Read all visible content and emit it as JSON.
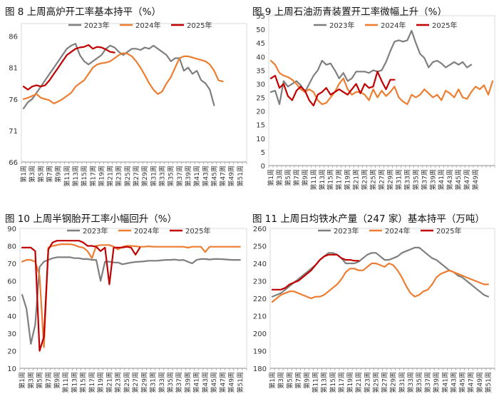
{
  "colors": {
    "s2023": "#7f7f7f",
    "s2024": "#ed7d31",
    "s2025": "#c00000"
  },
  "chart_data": [
    {
      "id": "c8",
      "type": "line",
      "title": "图 8  上周高炉开工率基本持平（%）",
      "xlabel": "",
      "ylabel": "",
      "ylim": [
        66,
        88
      ],
      "yticks": [
        66,
        71,
        76,
        81,
        86
      ],
      "xtick_labels": [
        "第1周",
        "第3周",
        "第5周",
        "第7周",
        "第9周",
        "第11周",
        "第13周",
        "第15周",
        "第17周",
        "第19周",
        "第21周",
        "第23周",
        "第25周",
        "第27周",
        "第29周",
        "第31周",
        "第33周",
        "第35周",
        "第37周",
        "第39周",
        "第41周",
        "第43周",
        "第45周",
        "第47周",
        "第49周",
        "第51周"
      ],
      "legend_position": "top-center",
      "series": [
        {
          "name": "2023年",
          "color_key": "s2023",
          "values": [
            74.5,
            75.5,
            76,
            77,
            78,
            79,
            80,
            81,
            82,
            83,
            84,
            84.5,
            84.8,
            83,
            82,
            81.5,
            82,
            82.5,
            83,
            84,
            84.5,
            84.2,
            83.5,
            83,
            83.5,
            84,
            84,
            83.8,
            84.2,
            84,
            84.5,
            84,
            83.5,
            83,
            82,
            82.5,
            82.5,
            80.5,
            81,
            80,
            80.5,
            79,
            78.5,
            77.5,
            75
          ]
        },
        {
          "name": "2024年",
          "color_key": "s2024",
          "values": [
            76,
            76.2,
            76.5,
            76.8,
            76.2,
            76,
            75.8,
            75.3,
            75.6,
            76,
            76.5,
            77,
            78,
            78.5,
            79,
            80,
            81,
            81.5,
            81.7,
            81.8,
            82,
            82.5,
            83,
            83.3,
            83.2,
            82.8,
            82,
            81,
            79.8,
            78.5,
            77.5,
            76.8,
            77.2,
            78.5,
            79.5,
            81,
            82.5,
            82.8,
            82.8,
            82.6,
            82.4,
            82.2,
            82,
            81.5,
            80.5,
            79,
            78.8
          ]
        },
        {
          "name": "2025年",
          "color_key": "s2025",
          "values": [
            78,
            77.5,
            78,
            78.2,
            78,
            78.2,
            79,
            80,
            81,
            82,
            83,
            83.5,
            84,
            84.2,
            84.3,
            84.6,
            84,
            84.3,
            84.2,
            83.9,
            83.5,
            83.4
          ]
        }
      ]
    },
    {
      "id": "c9",
      "type": "line",
      "title": "图 9  上周石油沥青装置开工率微幅上升（%）",
      "xlabel": "",
      "ylabel": "",
      "ylim": [
        0,
        55
      ],
      "yticks": [
        0,
        5,
        10,
        15,
        20,
        25,
        30,
        35,
        40,
        45,
        50,
        55
      ],
      "xtick_labels": [
        "第1周",
        "第3周",
        "第5周",
        "第7周",
        "第9周",
        "第11周",
        "第13周",
        "第15周",
        "第17周",
        "第19周",
        "第21周",
        "第23周",
        "第25周",
        "第27周",
        "第29周",
        "第31周",
        "第33周",
        "第35周",
        "第37周",
        "第39周",
        "第41周",
        "第43周",
        "第45周",
        "第47周",
        "第49周"
      ],
      "legend_position": "top-center",
      "series": [
        {
          "name": "2023年",
          "color_key": "s2023",
          "values": [
            27,
            27.5,
            22.5,
            31,
            29,
            30,
            31,
            29.5,
            27,
            30,
            33,
            35,
            38.5,
            37,
            37.5,
            35,
            32,
            34,
            31,
            32,
            34.5,
            34.5,
            34.5,
            34,
            35,
            34.5,
            35,
            38,
            42,
            45.5,
            46,
            45.5,
            46,
            49.5,
            45,
            41,
            39.5,
            36,
            38,
            38.5,
            37.5,
            36,
            37,
            38,
            37,
            38,
            36,
            37
          ]
        },
        {
          "name": "2024年",
          "color_key": "s2024",
          "values": [
            38.5,
            37,
            34,
            33,
            32.5,
            31.5,
            30,
            28,
            27,
            28,
            27,
            24,
            22.5,
            23,
            25,
            27,
            30,
            32,
            28,
            26,
            27,
            27,
            26,
            24,
            28,
            25,
            27.5,
            25.5,
            27,
            29,
            25,
            23.5,
            22.5,
            26,
            25,
            26,
            28,
            26.5,
            25,
            26,
            24,
            27.5,
            26.5,
            25,
            28,
            25,
            24.5,
            27,
            29,
            28,
            29.5,
            26,
            31
          ]
        },
        {
          "name": "2025年",
          "color_key": "s2025",
          "values": [
            32,
            33,
            28.5,
            30,
            25.5,
            24,
            27.5,
            29,
            27.5,
            24,
            22,
            26,
            27,
            28.5,
            26,
            27,
            28,
            27,
            26,
            28,
            30,
            26.5,
            30,
            28.5,
            29,
            34.5,
            31,
            28,
            31.5,
            31.5
          ]
        }
      ]
    },
    {
      "id": "c10",
      "type": "line",
      "title": "图 10  上周半钢胎开工率小幅回升（%）",
      "xlabel": "",
      "ylabel": "",
      "ylim": [
        10,
        90
      ],
      "yticks": [
        10,
        20,
        30,
        40,
        50,
        60,
        70,
        80,
        90
      ],
      "xtick_labels": [
        "第1周",
        "第3周",
        "第5周",
        "第7周",
        "第9周",
        "第11周",
        "第13周",
        "第15周",
        "第17周",
        "第19周",
        "第21周",
        "第23周",
        "第25周",
        "第27周",
        "第29周",
        "第31周",
        "第33周",
        "第35周",
        "第37周",
        "第39周",
        "第41周",
        "第43周",
        "第45周",
        "第47周",
        "第49周",
        "第51周"
      ],
      "legend_position": "top-center",
      "series": [
        {
          "name": "2023年",
          "color_key": "s2023",
          "values": [
            52,
            44,
            24,
            35,
            68,
            71,
            72,
            73,
            73.5,
            73.5,
            73.5,
            73.5,
            73,
            73,
            72.5,
            72.5,
            72,
            72,
            60,
            71,
            71,
            70.5,
            70.5,
            69.5,
            70,
            70.5,
            70.8,
            71,
            71.2,
            71.5,
            71.5,
            71.5,
            71.8,
            72,
            72,
            72.2,
            71.8,
            72,
            71,
            70,
            72,
            72.5,
            72.5,
            72.2,
            72.5,
            72.5,
            72.4,
            72.2,
            72,
            72,
            72
          ]
        },
        {
          "name": "2024年",
          "color_key": "s2024",
          "values": [
            71,
            72,
            72,
            71,
            63,
            22,
            79,
            80,
            80.5,
            81,
            81,
            81,
            80.5,
            79.5,
            79,
            77,
            73,
            80,
            80.5,
            80.5,
            80.5,
            79.5,
            78,
            79.5,
            80,
            80,
            79.8,
            79.5,
            79.5,
            79.8,
            79.5,
            79.5,
            79.5,
            79.5,
            79.5,
            79.5,
            79.5,
            79.5,
            79,
            79.5,
            79.5,
            79.5,
            76.5,
            79.5,
            79.5,
            79.5,
            79.5,
            79.5,
            79.5,
            79.5,
            79.5
          ]
        },
        {
          "name": "2025年",
          "color_key": "s2025",
          "values": [
            79,
            79,
            79,
            77,
            20,
            28,
            78,
            82,
            83,
            83,
            83,
            83,
            83,
            83,
            82,
            80,
            80,
            79.5,
            77,
            79,
            58,
            79,
            79,
            79,
            79.5,
            79,
            75,
            79
          ]
        }
      ]
    },
    {
      "id": "c11",
      "type": "line",
      "title": "图 11  上周日均铁水产量（247 家）基本持平（万吨）",
      "xlabel": "",
      "ylabel": "",
      "ylim": [
        180,
        260
      ],
      "yticks": [
        180,
        190,
        200,
        210,
        220,
        230,
        240,
        250,
        260
      ],
      "xtick_labels": [
        "第1周",
        "第3周",
        "第5周",
        "第7周",
        "第9周",
        "第11周",
        "第13周",
        "第15周",
        "第17周",
        "第19周",
        "第21周",
        "第23周",
        "第25周",
        "第27周",
        "第29周",
        "第31周",
        "第33周",
        "第35周",
        "第37周",
        "第39周",
        "第41周",
        "第43周",
        "第45周",
        "第47周",
        "第49周",
        "第51周"
      ],
      "legend_position": "top-center",
      "series": [
        {
          "name": "2023年",
          "color_key": "s2023",
          "values": [
            221,
            222,
            223,
            225,
            227,
            229,
            231,
            233,
            235,
            237,
            239,
            242,
            244,
            246,
            246,
            245,
            243,
            240,
            240,
            240,
            241,
            243,
            245,
            246,
            246,
            244,
            242,
            242,
            243,
            244,
            246,
            247,
            248,
            249,
            249,
            247,
            245,
            243,
            242,
            240,
            238,
            236,
            235,
            233,
            232,
            230,
            228,
            226,
            224,
            222,
            221
          ]
        },
        {
          "name": "2024年",
          "color_key": "s2024",
          "values": [
            218,
            220,
            222,
            223,
            224,
            224,
            223,
            222,
            221,
            220,
            221,
            221,
            222,
            224,
            226,
            228,
            231,
            235,
            237,
            237,
            236,
            236,
            238,
            240,
            240,
            239,
            238,
            240,
            239,
            236,
            232,
            227,
            223,
            221,
            222,
            224,
            225,
            228,
            232,
            234,
            235,
            236,
            235,
            234,
            233,
            232,
            231,
            230,
            229,
            228,
            228
          ]
        },
        {
          "name": "2025年",
          "color_key": "s2025",
          "values": [
            225,
            225,
            225,
            226,
            228,
            229,
            230,
            232,
            234,
            236,
            239,
            242,
            244,
            245,
            245,
            245,
            243,
            242,
            242,
            241.5,
            241.5
          ]
        }
      ]
    }
  ]
}
